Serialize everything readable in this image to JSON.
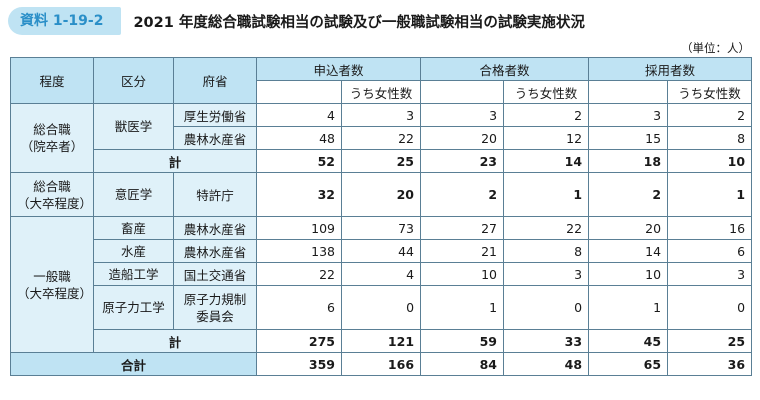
{
  "header": {
    "badge": "資料 1-19-2",
    "title": "2021 年度総合職試験相当の試験及び一般職試験相当の試験実施状況",
    "unit": "（単位：人）"
  },
  "columns": {
    "level": "程度",
    "category": "区分",
    "ministry": "府省",
    "applicants": "申込者数",
    "passers": "合格者数",
    "hires": "採用者数",
    "women": "うち女性数"
  },
  "groups": [
    {
      "label1": "総合職",
      "label2": "（院卒者）",
      "rows": [
        {
          "category": "獣医学",
          "ministry": "厚生労働省",
          "values": [
            "4",
            "3",
            "3",
            "2",
            "3",
            "2"
          ]
        },
        {
          "category": "",
          "ministry": "農林水産省",
          "values": [
            "48",
            "22",
            "20",
            "12",
            "15",
            "8"
          ]
        }
      ],
      "subtotal": {
        "label": "計",
        "values": [
          "52",
          "25",
          "23",
          "14",
          "18",
          "10"
        ]
      }
    },
    {
      "label1": "総合職",
      "label2": "（大卒程度）",
      "rows": [
        {
          "category": "意匠学",
          "ministry": "特許庁",
          "values": [
            "32",
            "20",
            "2",
            "1",
            "2",
            "1"
          ]
        }
      ]
    },
    {
      "label1": "一般職",
      "label2": "（大卒程度）",
      "rows": [
        {
          "category": "畜産",
          "ministry": "農林水産省",
          "values": [
            "109",
            "73",
            "27",
            "22",
            "20",
            "16"
          ]
        },
        {
          "category": "水産",
          "ministry": "農林水産省",
          "values": [
            "138",
            "44",
            "21",
            "8",
            "14",
            "6"
          ]
        },
        {
          "category": "造船工学",
          "ministry": "国土交通省",
          "values": [
            "22",
            "4",
            "10",
            "3",
            "10",
            "3"
          ]
        },
        {
          "category": "原子力工学",
          "ministry1": "原子力規制",
          "ministry2": "委員会",
          "values": [
            "6",
            "0",
            "1",
            "0",
            "1",
            "0"
          ]
        }
      ],
      "subtotal": {
        "label": "計",
        "values": [
          "275",
          "121",
          "59",
          "33",
          "45",
          "25"
        ]
      }
    }
  ],
  "total": {
    "label": "合計",
    "values": [
      "359",
      "166",
      "84",
      "48",
      "65",
      "36"
    ]
  }
}
